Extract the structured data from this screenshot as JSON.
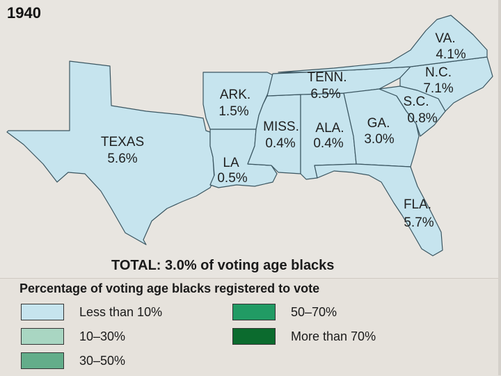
{
  "map": {
    "year": "1940",
    "total": "TOTAL: 3.0% of voting age blacks",
    "states": [
      {
        "id": "texas",
        "name": "TEXAS",
        "value": "5.6%",
        "category": "Less than 10%"
      },
      {
        "id": "arkansas",
        "name": "ARK.",
        "value": "1.5%",
        "category": "Less than 10%"
      },
      {
        "id": "louisiana",
        "name": "LA",
        "value": "0.5%",
        "category": "Less than 10%"
      },
      {
        "id": "mississippi",
        "name": "MISS.",
        "value": "0.4%",
        "category": "Less than 10%"
      },
      {
        "id": "alabama",
        "name": "ALA.",
        "value": "0.4%",
        "category": "Less than 10%"
      },
      {
        "id": "tennessee",
        "name": "TENN.",
        "value": "6.5%",
        "category": "Less than 10%"
      },
      {
        "id": "georgia",
        "name": "GA.",
        "value": "3.0%",
        "category": "Less than 10%"
      },
      {
        "id": "florida",
        "name": "FLA.",
        "value": "5.7%",
        "category": "Less than 10%"
      },
      {
        "id": "south_carolina",
        "name": "S.C.",
        "value": "0.8%",
        "category": "Less than 10%"
      },
      {
        "id": "north_carolina",
        "name": "N.C.",
        "value": "7.1%",
        "category": "Less than 10%"
      },
      {
        "id": "virginia",
        "name": "VA.",
        "value": "4.1%",
        "category": "Less than 10%"
      }
    ]
  },
  "legend": {
    "title": "Percentage of voting age blacks registered to vote",
    "items": [
      {
        "label": "Less than 10%",
        "color": "#c6e4ee"
      },
      {
        "label": "10–30%",
        "color": "#a9d6c2"
      },
      {
        "label": "30–50%",
        "color": "#63ad8a"
      },
      {
        "label": "50–70%",
        "color": "#219b64"
      },
      {
        "label": "More than 70%",
        "color": "#0b6b2e"
      }
    ]
  },
  "colors": {
    "state_fill": "#c6e4ee",
    "map_background": "#e8e5e0",
    "legend_background": "#e6e2dc"
  }
}
